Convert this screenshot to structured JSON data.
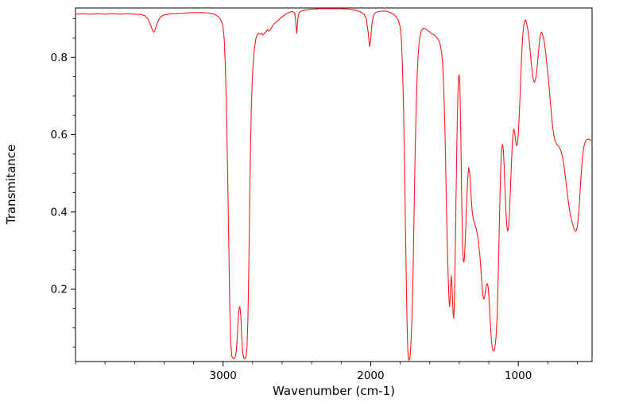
{
  "chart_data": {
    "type": "line",
    "title": "",
    "xlabel": "Wavenumber (cm-1)",
    "ylabel": "Transmitance",
    "line_color": "#ff1a1a",
    "background_color": "#ffffff",
    "frame_color": "#000000",
    "x_axis_reversed": true,
    "xlim": [
      4000,
      500
    ],
    "ylim": [
      0.013,
      0.928
    ],
    "x_ticks": [
      3000,
      2000,
      1000
    ],
    "x_tick_labels": [
      "3000",
      "2000",
      "1000"
    ],
    "y_ticks": [
      0.2,
      0.4,
      0.6,
      0.8
    ],
    "y_tick_labels": [
      "0.2",
      "0.4",
      "0.6",
      "0.8"
    ],
    "x_minor_step": 200,
    "y_minor_step": 0.05,
    "grid": false,
    "legend": "none",
    "series_name": "IR transmittance spectrum",
    "points": [
      [
        4000,
        0.912
      ],
      [
        3950,
        0.913
      ],
      [
        3900,
        0.912
      ],
      [
        3850,
        0.913
      ],
      [
        3800,
        0.912
      ],
      [
        3750,
        0.913
      ],
      [
        3700,
        0.912
      ],
      [
        3650,
        0.913
      ],
      [
        3600,
        0.912
      ],
      [
        3560,
        0.911
      ],
      [
        3530,
        0.908
      ],
      [
        3510,
        0.9
      ],
      [
        3495,
        0.888
      ],
      [
        3480,
        0.872
      ],
      [
        3470,
        0.865
      ],
      [
        3460,
        0.872
      ],
      [
        3450,
        0.885
      ],
      [
        3435,
        0.898
      ],
      [
        3420,
        0.906
      ],
      [
        3400,
        0.91
      ],
      [
        3350,
        0.913
      ],
      [
        3300,
        0.914
      ],
      [
        3250,
        0.915
      ],
      [
        3200,
        0.916
      ],
      [
        3150,
        0.916
      ],
      [
        3100,
        0.915
      ],
      [
        3060,
        0.912
      ],
      [
        3030,
        0.905
      ],
      [
        3010,
        0.893
      ],
      [
        3000,
        0.878
      ],
      [
        2992,
        0.845
      ],
      [
        2985,
        0.78
      ],
      [
        2978,
        0.68
      ],
      [
        2970,
        0.52
      ],
      [
        2962,
        0.33
      ],
      [
        2955,
        0.16
      ],
      [
        2948,
        0.06
      ],
      [
        2940,
        0.025
      ],
      [
        2930,
        0.02
      ],
      [
        2920,
        0.022
      ],
      [
        2912,
        0.035
      ],
      [
        2905,
        0.07
      ],
      [
        2898,
        0.12
      ],
      [
        2892,
        0.15
      ],
      [
        2886,
        0.155
      ],
      [
        2880,
        0.13
      ],
      [
        2874,
        0.08
      ],
      [
        2868,
        0.04
      ],
      [
        2860,
        0.022
      ],
      [
        2852,
        0.02
      ],
      [
        2845,
        0.025
      ],
      [
        2838,
        0.05
      ],
      [
        2832,
        0.12
      ],
      [
        2826,
        0.25
      ],
      [
        2820,
        0.42
      ],
      [
        2814,
        0.57
      ],
      [
        2808,
        0.68
      ],
      [
        2800,
        0.76
      ],
      [
        2790,
        0.815
      ],
      [
        2780,
        0.845
      ],
      [
        2770,
        0.858
      ],
      [
        2760,
        0.862
      ],
      [
        2750,
        0.86
      ],
      [
        2740,
        0.862
      ],
      [
        2730,
        0.858
      ],
      [
        2720,
        0.862
      ],
      [
        2710,
        0.866
      ],
      [
        2700,
        0.872
      ],
      [
        2690,
        0.868
      ],
      [
        2680,
        0.872
      ],
      [
        2670,
        0.878
      ],
      [
        2660,
        0.884
      ],
      [
        2650,
        0.888
      ],
      [
        2630,
        0.895
      ],
      [
        2610,
        0.902
      ],
      [
        2590,
        0.908
      ],
      [
        2570,
        0.913
      ],
      [
        2550,
        0.917
      ],
      [
        2530,
        0.919
      ],
      [
        2515,
        0.915
      ],
      [
        2508,
        0.895
      ],
      [
        2502,
        0.862
      ],
      [
        2498,
        0.878
      ],
      [
        2492,
        0.905
      ],
      [
        2485,
        0.916
      ],
      [
        2470,
        0.92
      ],
      [
        2450,
        0.922
      ],
      [
        2420,
        0.924
      ],
      [
        2390,
        0.925
      ],
      [
        2350,
        0.926
      ],
      [
        2300,
        0.926
      ],
      [
        2250,
        0.926
      ],
      [
        2200,
        0.926
      ],
      [
        2150,
        0.925
      ],
      [
        2100,
        0.922
      ],
      [
        2070,
        0.918
      ],
      [
        2045,
        0.912
      ],
      [
        2030,
        0.9
      ],
      [
        2018,
        0.868
      ],
      [
        2008,
        0.828
      ],
      [
        2000,
        0.845
      ],
      [
        1992,
        0.885
      ],
      [
        1982,
        0.908
      ],
      [
        1970,
        0.915
      ],
      [
        1955,
        0.918
      ],
      [
        1940,
        0.919
      ],
      [
        1920,
        0.92
      ],
      [
        1900,
        0.92
      ],
      [
        1880,
        0.918
      ],
      [
        1860,
        0.915
      ],
      [
        1840,
        0.91
      ],
      [
        1825,
        0.905
      ],
      [
        1812,
        0.895
      ],
      [
        1800,
        0.878
      ],
      [
        1792,
        0.845
      ],
      [
        1785,
        0.78
      ],
      [
        1778,
        0.68
      ],
      [
        1772,
        0.55
      ],
      [
        1766,
        0.4
      ],
      [
        1760,
        0.25
      ],
      [
        1754,
        0.12
      ],
      [
        1749,
        0.045
      ],
      [
        1744,
        0.02
      ],
      [
        1740,
        0.016
      ],
      [
        1736,
        0.02
      ],
      [
        1731,
        0.035
      ],
      [
        1726,
        0.07
      ],
      [
        1720,
        0.13
      ],
      [
        1713,
        0.24
      ],
      [
        1706,
        0.4
      ],
      [
        1699,
        0.55
      ],
      [
        1692,
        0.67
      ],
      [
        1685,
        0.755
      ],
      [
        1678,
        0.81
      ],
      [
        1670,
        0.845
      ],
      [
        1662,
        0.862
      ],
      [
        1655,
        0.87
      ],
      [
        1648,
        0.874
      ],
      [
        1640,
        0.876
      ],
      [
        1630,
        0.874
      ],
      [
        1620,
        0.872
      ],
      [
        1610,
        0.868
      ],
      [
        1600,
        0.866
      ],
      [
        1590,
        0.862
      ],
      [
        1580,
        0.86
      ],
      [
        1570,
        0.858
      ],
      [
        1560,
        0.855
      ],
      [
        1550,
        0.85
      ],
      [
        1540,
        0.845
      ],
      [
        1530,
        0.835
      ],
      [
        1520,
        0.815
      ],
      [
        1512,
        0.78
      ],
      [
        1505,
        0.72
      ],
      [
        1498,
        0.63
      ],
      [
        1492,
        0.52
      ],
      [
        1486,
        0.4
      ],
      [
        1480,
        0.3
      ],
      [
        1474,
        0.22
      ],
      [
        1469,
        0.17
      ],
      [
        1465,
        0.155
      ],
      [
        1461,
        0.18
      ],
      [
        1457,
        0.22
      ],
      [
        1453,
        0.235
      ],
      [
        1449,
        0.21
      ],
      [
        1445,
        0.17
      ],
      [
        1441,
        0.135
      ],
      [
        1438,
        0.125
      ],
      [
        1435,
        0.14
      ],
      [
        1431,
        0.2
      ],
      [
        1427,
        0.3
      ],
      [
        1422,
        0.43
      ],
      [
        1417,
        0.56
      ],
      [
        1412,
        0.66
      ],
      [
        1408,
        0.72
      ],
      [
        1404,
        0.75
      ],
      [
        1400,
        0.755
      ],
      [
        1396,
        0.73
      ],
      [
        1392,
        0.66
      ],
      [
        1388,
        0.56
      ],
      [
        1384,
        0.45
      ],
      [
        1380,
        0.36
      ],
      [
        1376,
        0.3
      ],
      [
        1372,
        0.275
      ],
      [
        1368,
        0.27
      ],
      [
        1364,
        0.285
      ],
      [
        1360,
        0.32
      ],
      [
        1354,
        0.38
      ],
      [
        1348,
        0.44
      ],
      [
        1342,
        0.49
      ],
      [
        1336,
        0.515
      ],
      [
        1330,
        0.505
      ],
      [
        1324,
        0.47
      ],
      [
        1318,
        0.43
      ],
      [
        1312,
        0.4
      ],
      [
        1306,
        0.385
      ],
      [
        1300,
        0.375
      ],
      [
        1292,
        0.365
      ],
      [
        1284,
        0.355
      ],
      [
        1276,
        0.34
      ],
      [
        1268,
        0.315
      ],
      [
        1260,
        0.285
      ],
      [
        1252,
        0.245
      ],
      [
        1246,
        0.21
      ],
      [
        1240,
        0.185
      ],
      [
        1234,
        0.175
      ],
      [
        1228,
        0.18
      ],
      [
        1222,
        0.195
      ],
      [
        1216,
        0.21
      ],
      [
        1210,
        0.215
      ],
      [
        1204,
        0.205
      ],
      [
        1198,
        0.175
      ],
      [
        1192,
        0.13
      ],
      [
        1186,
        0.09
      ],
      [
        1180,
        0.06
      ],
      [
        1174,
        0.045
      ],
      [
        1168,
        0.04
      ],
      [
        1162,
        0.042
      ],
      [
        1156,
        0.055
      ],
      [
        1150,
        0.08
      ],
      [
        1144,
        0.125
      ],
      [
        1138,
        0.2
      ],
      [
        1132,
        0.3
      ],
      [
        1126,
        0.41
      ],
      [
        1120,
        0.5
      ],
      [
        1114,
        0.555
      ],
      [
        1108,
        0.575
      ],
      [
        1102,
        0.565
      ],
      [
        1096,
        0.52
      ],
      [
        1090,
        0.46
      ],
      [
        1084,
        0.405
      ],
      [
        1078,
        0.365
      ],
      [
        1072,
        0.35
      ],
      [
        1066,
        0.36
      ],
      [
        1060,
        0.395
      ],
      [
        1054,
        0.45
      ],
      [
        1048,
        0.51
      ],
      [
        1042,
        0.565
      ],
      [
        1036,
        0.6
      ],
      [
        1030,
        0.615
      ],
      [
        1024,
        0.605
      ],
      [
        1018,
        0.585
      ],
      [
        1012,
        0.572
      ],
      [
        1006,
        0.575
      ],
      [
        1000,
        0.6
      ],
      [
        994,
        0.645
      ],
      [
        988,
        0.7
      ],
      [
        982,
        0.76
      ],
      [
        976,
        0.815
      ],
      [
        970,
        0.855
      ],
      [
        964,
        0.88
      ],
      [
        958,
        0.893
      ],
      [
        952,
        0.897
      ],
      [
        946,
        0.892
      ],
      [
        940,
        0.882
      ],
      [
        933,
        0.866
      ],
      [
        926,
        0.843
      ],
      [
        919,
        0.815
      ],
      [
        912,
        0.785
      ],
      [
        905,
        0.76
      ],
      [
        898,
        0.743
      ],
      [
        891,
        0.735
      ],
      [
        884,
        0.742
      ],
      [
        877,
        0.758
      ],
      [
        870,
        0.785
      ],
      [
        863,
        0.815
      ],
      [
        856,
        0.842
      ],
      [
        849,
        0.86
      ],
      [
        843,
        0.866
      ],
      [
        837,
        0.862
      ],
      [
        830,
        0.852
      ],
      [
        823,
        0.838
      ],
      [
        816,
        0.818
      ],
      [
        809,
        0.792
      ],
      [
        802,
        0.766
      ],
      [
        795,
        0.74
      ],
      [
        788,
        0.71
      ],
      [
        781,
        0.678
      ],
      [
        774,
        0.648
      ],
      [
        767,
        0.62
      ],
      [
        760,
        0.6
      ],
      [
        753,
        0.588
      ],
      [
        746,
        0.58
      ],
      [
        739,
        0.575
      ],
      [
        732,
        0.572
      ],
      [
        725,
        0.57
      ],
      [
        718,
        0.565
      ],
      [
        711,
        0.558
      ],
      [
        704,
        0.548
      ],
      [
        697,
        0.535
      ],
      [
        690,
        0.518
      ],
      [
        683,
        0.498
      ],
      [
        676,
        0.475
      ],
      [
        669,
        0.452
      ],
      [
        662,
        0.43
      ],
      [
        655,
        0.41
      ],
      [
        648,
        0.395
      ],
      [
        641,
        0.382
      ],
      [
        634,
        0.372
      ],
      [
        627,
        0.362
      ],
      [
        620,
        0.355
      ],
      [
        613,
        0.35
      ],
      [
        606,
        0.352
      ],
      [
        600,
        0.362
      ],
      [
        594,
        0.382
      ],
      [
        588,
        0.412
      ],
      [
        582,
        0.448
      ],
      [
        576,
        0.485
      ],
      [
        570,
        0.518
      ],
      [
        564,
        0.544
      ],
      [
        558,
        0.563
      ],
      [
        552,
        0.575
      ],
      [
        546,
        0.582
      ],
      [
        540,
        0.586
      ],
      [
        534,
        0.588
      ],
      [
        528,
        0.588
      ],
      [
        522,
        0.588
      ],
      [
        516,
        0.587
      ],
      [
        510,
        0.586
      ],
      [
        505,
        0.585
      ],
      [
        500,
        0.585
      ]
    ]
  }
}
